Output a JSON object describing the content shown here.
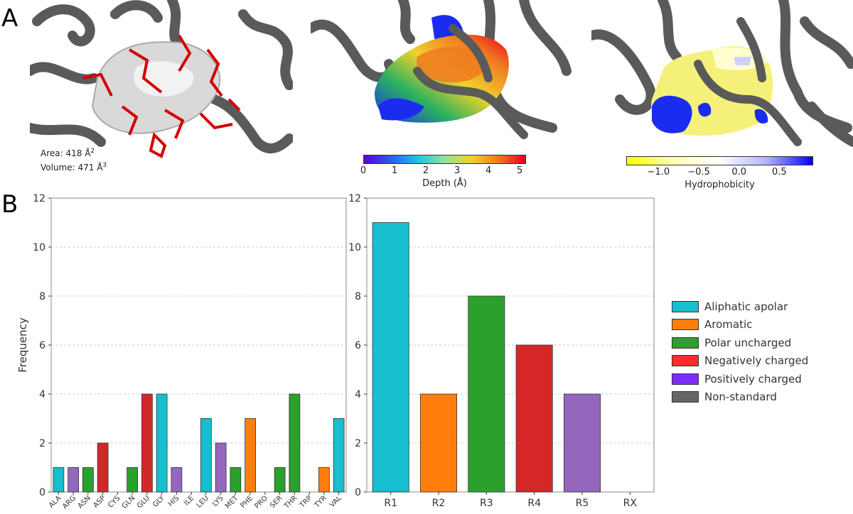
{
  "panels": {
    "a": "A",
    "b": "B"
  },
  "pocket_stats": {
    "area_label": "Area: 418 Å",
    "area_exp": "2",
    "volume_label": "Volume: 471 Å",
    "volume_exp": "3"
  },
  "colorbars": {
    "depth": {
      "title": "Depth (Å)",
      "ticks": [
        "0",
        "1",
        "2",
        "3",
        "4",
        "5"
      ],
      "tick_values": [
        0,
        1,
        2,
        3,
        4,
        5
      ],
      "range": [
        0,
        5.2
      ],
      "colors": [
        "#5a00d6",
        "#2a5cf0",
        "#21c2e6",
        "#8ee69a",
        "#f0d22a",
        "#f07a20",
        "#e8001a"
      ]
    },
    "hydrophobicity": {
      "title": "Hydrophobicity",
      "ticks": [
        "−1.0",
        "−0.5",
        "0.0",
        "0.5"
      ],
      "tick_values": [
        -1.0,
        -0.5,
        0.0,
        0.5
      ],
      "range": [
        -1.4,
        0.92
      ],
      "colors": [
        "#ffff00",
        "#ffffb4",
        "#ffffff",
        "#b4b4ff",
        "#0000ff"
      ]
    }
  },
  "chart_data": [
    {
      "type": "bar",
      "title": "",
      "xlabel": "",
      "ylabel": "Frequency",
      "ylim": [
        0,
        12
      ],
      "yticks": [
        "0",
        "2",
        "4",
        "6",
        "8",
        "10",
        "12"
      ],
      "grid": true,
      "categories": [
        "ALA",
        "ARG",
        "ASN",
        "ASP",
        "CYS",
        "GLN",
        "GLU",
        "GLY",
        "HIS",
        "ILE",
        "LEU",
        "LYS",
        "MET",
        "PHE",
        "PRO",
        "SER",
        "THR",
        "TRP",
        "TYR",
        "VAL"
      ],
      "values": [
        1,
        1,
        1,
        2,
        0,
        1,
        4,
        4,
        1,
        0,
        3,
        2,
        1,
        3,
        0,
        1,
        4,
        0,
        1,
        3
      ],
      "colors": [
        "#17becf",
        "#9467bd",
        "#2ca02c",
        "#d62728",
        "#2ca02c",
        "#2ca02c",
        "#d62728",
        "#17becf",
        "#9467bd",
        "#17becf",
        "#17becf",
        "#9467bd",
        "#2ca02c",
        "#ff7f0e",
        "#17becf",
        "#2ca02c",
        "#2ca02c",
        "#ff7f0e",
        "#ff7f0e",
        "#17becf"
      ]
    },
    {
      "type": "bar",
      "title": "",
      "xlabel": "",
      "ylabel": "",
      "ylim": [
        0,
        12
      ],
      "yticks": [
        "0",
        "2",
        "4",
        "6",
        "8",
        "10",
        "12"
      ],
      "grid": true,
      "categories": [
        "R1",
        "R2",
        "R3",
        "R4",
        "R5",
        "RX"
      ],
      "values": [
        11,
        4,
        8,
        6,
        4,
        0
      ],
      "colors": [
        "#17becf",
        "#ff7f0e",
        "#2ca02c",
        "#d62728",
        "#9467bd",
        "#555555"
      ]
    }
  ],
  "legend": [
    {
      "label": "Aliphatic apolar",
      "color": "#17becf"
    },
    {
      "label": "Aromatic",
      "color": "#ff7f0e"
    },
    {
      "label": "Polar uncharged",
      "color": "#2ca02c"
    },
    {
      "label": "Negatively charged",
      "color": "#ff2a2a"
    },
    {
      "label": "Positively charged",
      "color": "#7f2aff"
    },
    {
      "label": "Non-standard",
      "color": "#666666"
    }
  ]
}
